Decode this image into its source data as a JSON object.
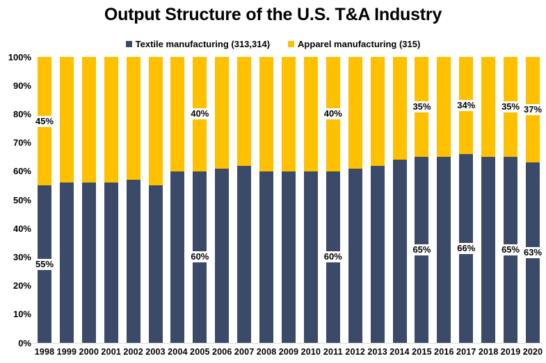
{
  "chart_data": {
    "type": "bar",
    "variant": "stacked-column-100pct",
    "title": "Output Structure of the U.S. T&A Industry",
    "categories": [
      "1998",
      "1999",
      "2000",
      "2001",
      "2002",
      "2003",
      "2004",
      "2005",
      "2006",
      "2007",
      "2008",
      "2009",
      "2010",
      "2011",
      "2012",
      "2013",
      "2014",
      "2015",
      "2016",
      "2017",
      "2018",
      "2019",
      "2020"
    ],
    "series": [
      {
        "name": "Textile manufacturing (313,314)",
        "color": "#3C4A6A",
        "values": [
          55,
          56,
          56,
          56,
          57,
          55,
          60,
          60,
          61,
          62,
          60,
          60,
          60,
          60,
          61,
          62,
          64,
          65,
          65,
          66,
          65,
          65,
          63
        ]
      },
      {
        "name": "Apparel manufacturing (315)",
        "color": "#FFC000",
        "values": [
          45,
          44,
          44,
          44,
          43,
          45,
          40,
          40,
          39,
          38,
          40,
          40,
          40,
          40,
          39,
          38,
          36,
          35,
          35,
          34,
          35,
          35,
          37
        ]
      }
    ],
    "ylim": [
      0,
      100
    ],
    "ytick_labels": [
      "0%",
      "10%",
      "20%",
      "30%",
      "40%",
      "50%",
      "60%",
      "70%",
      "80%",
      "90%",
      "100%"
    ],
    "grid": false,
    "legend_position": "top",
    "axis_line_color": "#D9D9D9",
    "data_labels": [
      {
        "year": "1998",
        "textile": "55%",
        "apparel": "45%"
      },
      {
        "year": "2005",
        "textile": "60%",
        "apparel": "40%"
      },
      {
        "year": "2011",
        "textile": "60%",
        "apparel": "40%"
      },
      {
        "year": "2015",
        "textile": "65%",
        "apparel": "35%"
      },
      {
        "year": "2017",
        "textile": "66%",
        "apparel": "34%"
      },
      {
        "year": "2019",
        "textile": "65%",
        "apparel": "35%"
      },
      {
        "year": "2020",
        "textile": "63%",
        "apparel": "37%"
      }
    ]
  }
}
